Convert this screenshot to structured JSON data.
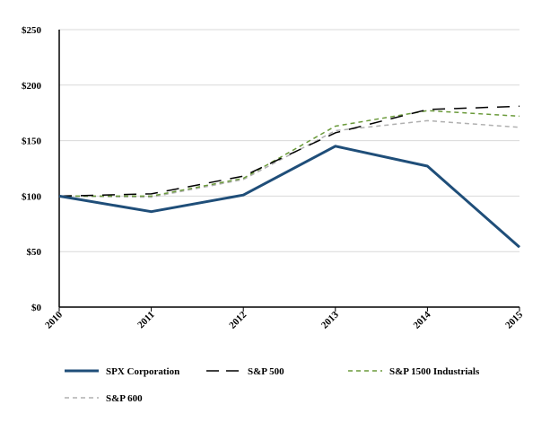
{
  "chart_data": {
    "type": "line",
    "title": "",
    "xlabel": "",
    "ylabel": "",
    "x": [
      "2010",
      "2011",
      "2012",
      "2013",
      "2014",
      "2015"
    ],
    "ylim": [
      0,
      250
    ],
    "yticks": [
      0,
      50,
      100,
      150,
      200,
      250
    ],
    "ytick_labels": [
      "$0",
      "$50",
      "$100",
      "$150",
      "$200",
      "$250"
    ],
    "grid": true,
    "legend_position": "bottom",
    "series": [
      {
        "name": "SPX Corporation",
        "values": [
          100,
          86,
          101,
          145,
          127,
          54
        ],
        "color": "#1f4e79",
        "style": "solid"
      },
      {
        "name": "S&P 500",
        "values": [
          100,
          102,
          118,
          157,
          178,
          181
        ],
        "color": "#000000",
        "style": "longdash"
      },
      {
        "name": "S&P 1500 Industrials",
        "values": [
          100,
          100,
          116,
          163,
          177,
          172
        ],
        "color": "#6a9a3a",
        "style": "dash"
      },
      {
        "name": "S&P 600",
        "values": [
          100,
          99,
          115,
          159,
          168,
          162
        ],
        "color": "#b0b0b0",
        "style": "dash"
      }
    ]
  }
}
